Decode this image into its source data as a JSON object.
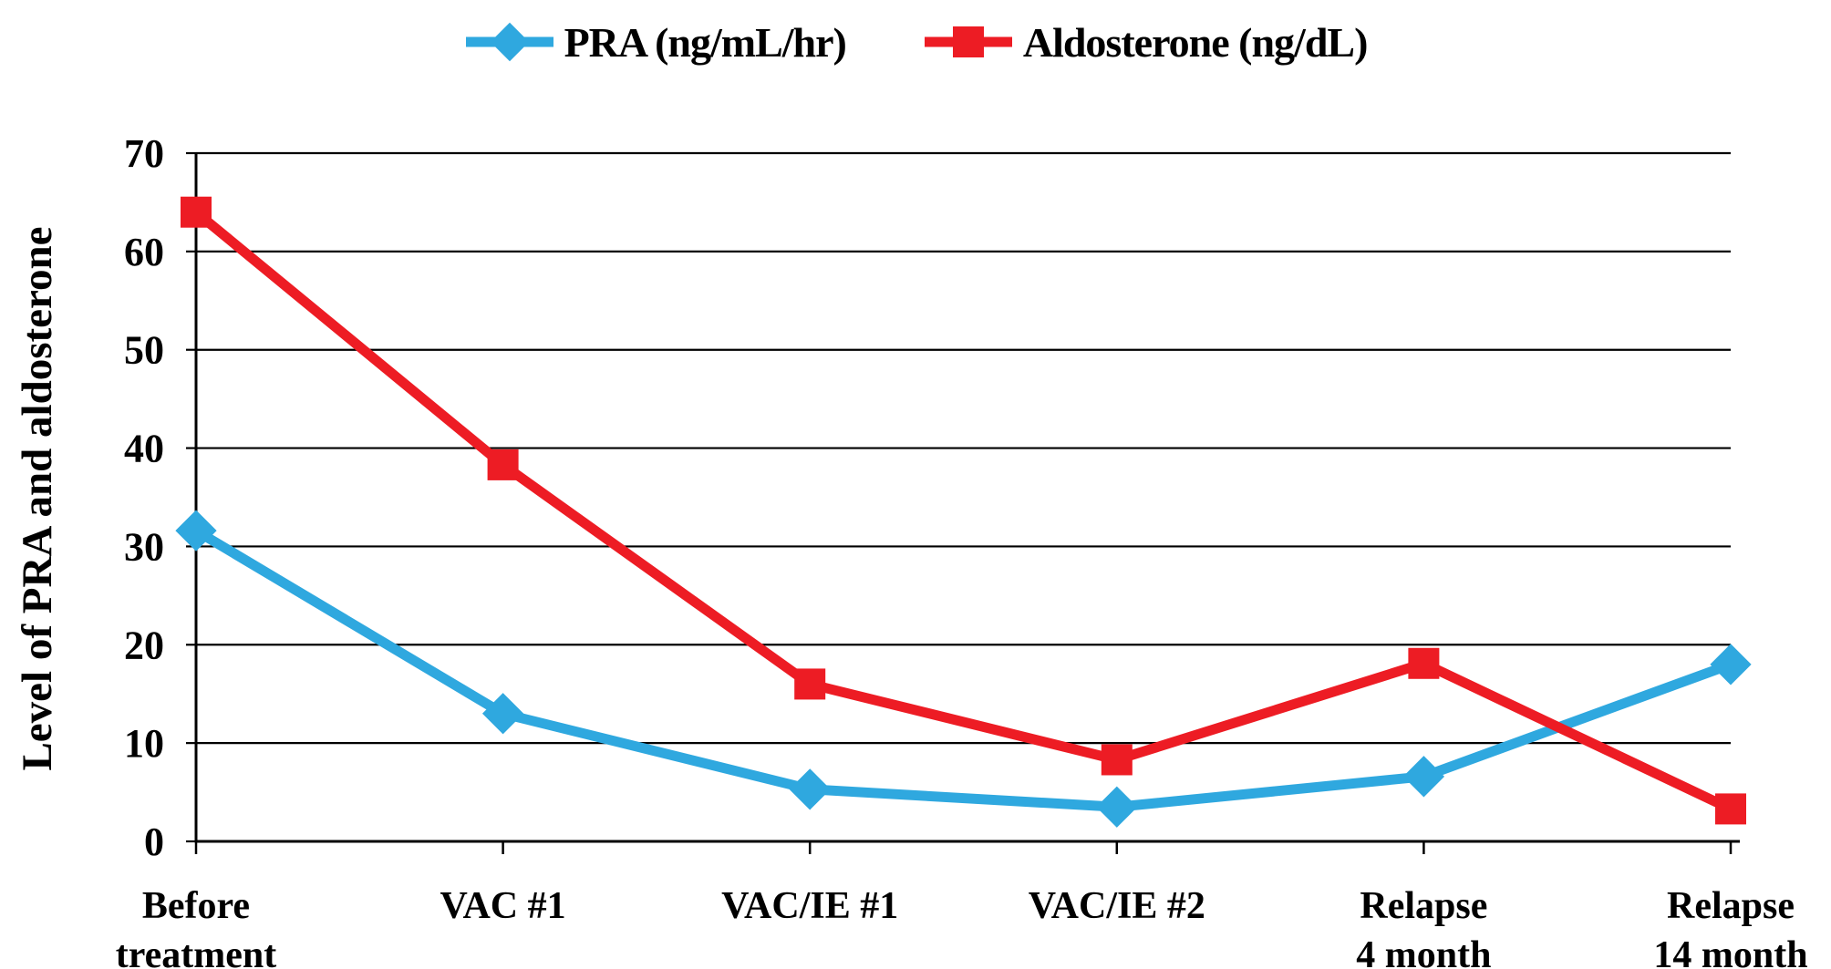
{
  "chart_data": {
    "type": "line",
    "title": "",
    "ylabel": "Level of PRA and aldosterone",
    "xlabel": "",
    "categories": [
      "Before\ntreatment",
      "VAC #1",
      "VAC/IE #1",
      "VAC/IE #2",
      "Relapse\n4 month",
      "Relapse\n14 month"
    ],
    "series": [
      {
        "name": "PRA (ng/mL/hr)",
        "color": "#2FA8DF",
        "marker": "diamond",
        "values": [
          31.6,
          13,
          5.3,
          3.5,
          6.6,
          18
        ]
      },
      {
        "name": "Aldosterone (ng/dL)",
        "color": "#ED1C24",
        "marker": "square",
        "values": [
          64,
          38.3,
          16,
          8.3,
          18.1,
          3.3
        ]
      }
    ],
    "ylim": [
      0,
      70
    ],
    "ytick_step": 10,
    "yticks": [
      0,
      10,
      20,
      30,
      40,
      50,
      60,
      70
    ],
    "grid": "horizontal",
    "gridline_color": "#000000",
    "legend_position": "top-center"
  }
}
